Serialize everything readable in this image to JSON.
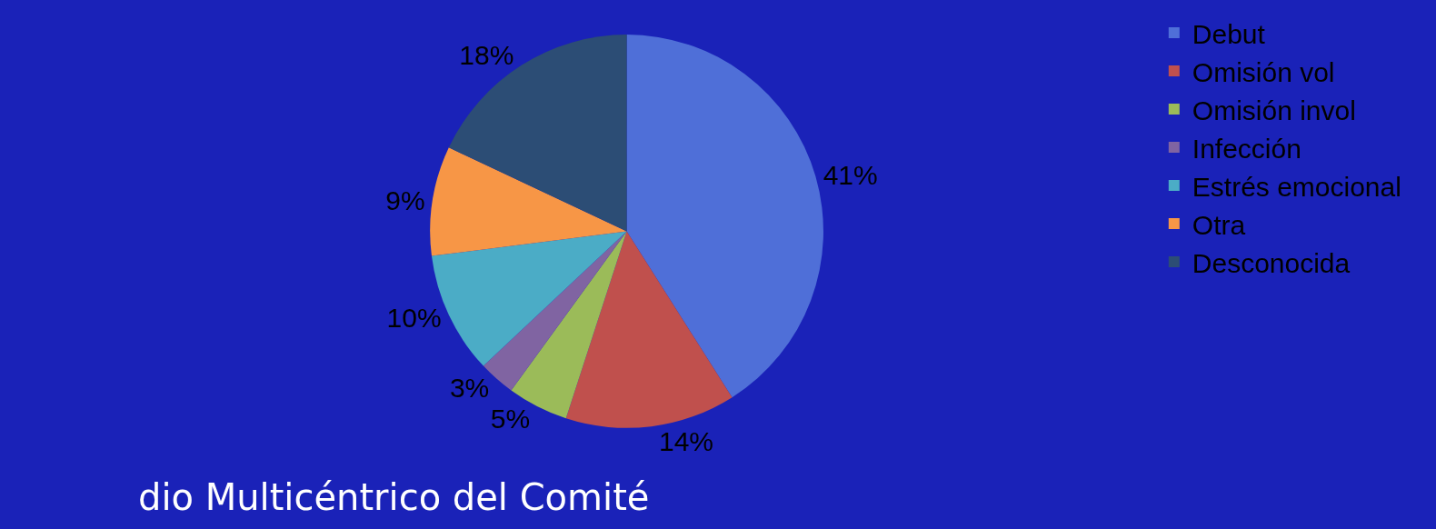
{
  "chart_data": {
    "type": "pie",
    "categories": [
      "Debut",
      "Omisión vol",
      "Omisión invol",
      "Infección",
      "Estrés emocional",
      "Otra",
      "Desconocida"
    ],
    "values": [
      41,
      14,
      5,
      3,
      10,
      9,
      18
    ],
    "value_labels": [
      "41%",
      "14%",
      "5%",
      "3%",
      "10%",
      "9%",
      "18%"
    ],
    "colors": [
      "#4f6fd8",
      "#c0504d",
      "#9bbb59",
      "#8064a2",
      "#4bacc6",
      "#f79646",
      "#2c4d75"
    ],
    "legend": "right",
    "annotations": [
      "dio Multicéntrico del Comité"
    ]
  }
}
